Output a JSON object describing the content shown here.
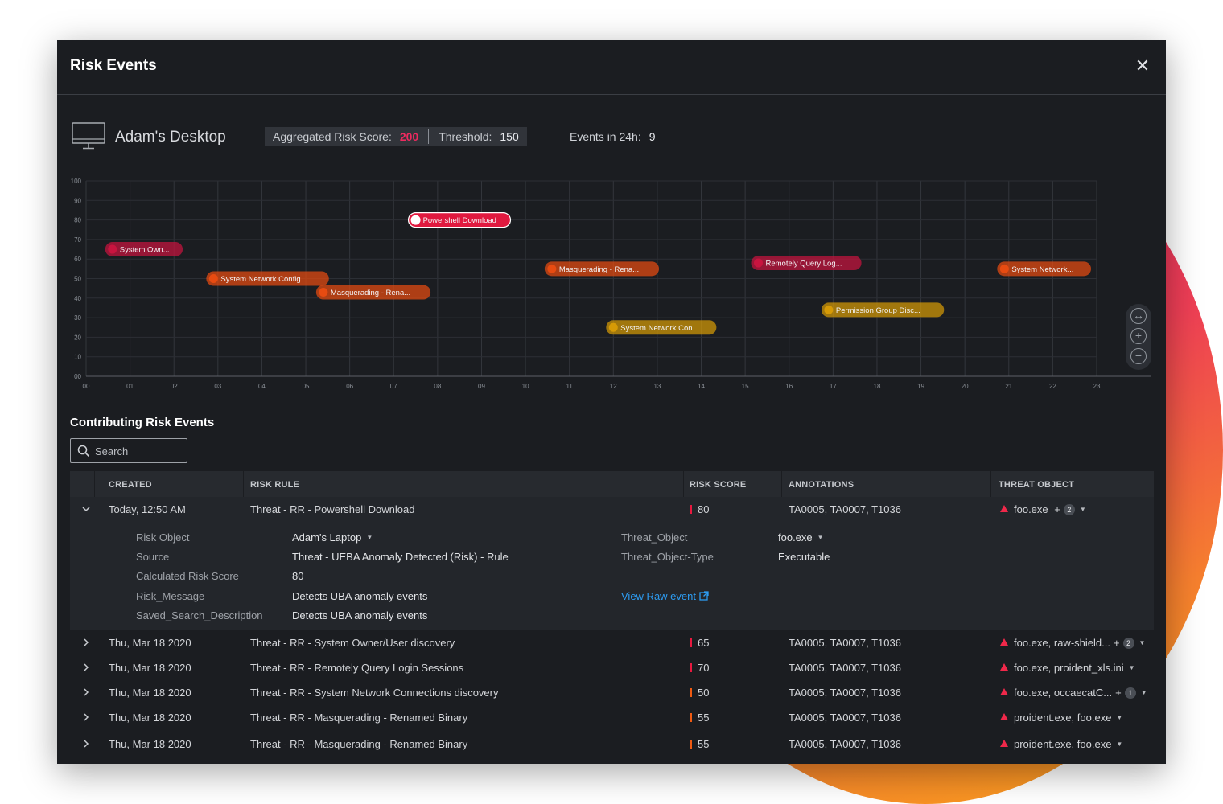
{
  "modal": {
    "title": "Risk Events",
    "close_label": "✕"
  },
  "summary": {
    "device_name": "Adam's Desktop",
    "agg_label": "Aggregated Risk Score:",
    "agg_value": "200",
    "threshold_label": "Threshold:",
    "threshold_value": "150",
    "events_label": "Events in 24h:",
    "events_value": "9"
  },
  "chart_data": {
    "type": "scatter",
    "title": "",
    "xlabel": "",
    "ylabel": "",
    "x_ticks": [
      "00",
      "01",
      "02",
      "03",
      "04",
      "05",
      "06",
      "07",
      "08",
      "09",
      "10",
      "11",
      "12",
      "13",
      "14",
      "15",
      "16",
      "17",
      "18",
      "19",
      "20",
      "21",
      "22",
      "23"
    ],
    "y_ticks": [
      "00",
      "10",
      "20",
      "30",
      "40",
      "50",
      "60",
      "70",
      "80",
      "90",
      "100"
    ],
    "ylim": [
      0,
      100
    ],
    "xlim": [
      0,
      23
    ],
    "points": [
      {
        "x": 0.6,
        "y": 65,
        "label": "System Own...",
        "color": "#c8143f"
      },
      {
        "x": 2.9,
        "y": 50,
        "label": "System Network Config...",
        "color": "#e74b11"
      },
      {
        "x": 5.4,
        "y": 43,
        "label": "Masquerading - Rena...",
        "color": "#e74b11"
      },
      {
        "x": 7.5,
        "y": 80,
        "label": "Powershell Download",
        "color": "#e0193f",
        "selected": true
      },
      {
        "x": 10.6,
        "y": 55,
        "label": "Masquerading - Rena...",
        "color": "#e74b11"
      },
      {
        "x": 12.0,
        "y": 25,
        "label": "System Network Con...",
        "color": "#d69a06"
      },
      {
        "x": 15.3,
        "y": 58,
        "label": "Remotely Query Log...",
        "color": "#c8143f"
      },
      {
        "x": 16.9,
        "y": 34,
        "label": "Permission Group Disc...",
        "color": "#d69a06"
      },
      {
        "x": 20.9,
        "y": 55,
        "label": "System Network...",
        "color": "#e74b11"
      }
    ]
  },
  "zoom": {
    "pan_icon": "↔",
    "zoom_in": "+",
    "zoom_out": "−"
  },
  "contrib": {
    "title": "Contributing Risk Events",
    "search_placeholder": "Search"
  },
  "table": {
    "headers": {
      "created": "CREATED",
      "risk_rule": "RISK RULE",
      "risk_score": "RISK SCORE",
      "annotations": "ANNOTATIONS",
      "threat_object": "THREAT OBJECT"
    },
    "expanded_row": {
      "created": "Today, 12:50 AM",
      "rule": "Threat - RR - Powershell Download",
      "score": "80",
      "score_color": "#e8193f",
      "annotations": "TA0005, TA0007, T1036",
      "threat": "foo.exe",
      "threat_plus": "+",
      "threat_badge": "2",
      "details": {
        "risk_object_label": "Risk Object",
        "risk_object": "Adam's Laptop",
        "source_label": "Source",
        "source": "Threat - UEBA Anomaly Detected (Risk) - Rule",
        "calc_label": "Calculated Risk Score",
        "calc": "80",
        "msg_label": "Risk_Message",
        "msg": "Detects UBA anomaly events",
        "saved_label": "Saved_Search_Description",
        "saved": "Detects UBA anomaly events",
        "threat_object_label": "Threat_Object",
        "threat_object": "foo.exe",
        "threat_type_label": "Threat_Object-Type",
        "threat_type": "Executable",
        "raw_link": "View Raw event"
      }
    },
    "rows": [
      {
        "created": "Thu, Mar 18 2020",
        "rule": "Threat - RR - System Owner/User discovery",
        "score": "65",
        "score_color": "#e8193f",
        "annotations": "TA0005, TA0007, T1036",
        "threat": "foo.exe, raw-shield...",
        "plus": "+",
        "badge": "2"
      },
      {
        "created": "Thu, Mar 18 2020",
        "rule": "Threat - RR - Remotely Query Login Sessions",
        "score": "70",
        "score_color": "#e8193f",
        "annotations": "TA0005, TA0007, T1036",
        "threat": "foo.exe, proident_xls.ini",
        "plus": "",
        "badge": ""
      },
      {
        "created": "Thu, Mar 18 2020",
        "rule": "Threat - RR - System Network Connections discovery",
        "score": "50",
        "score_color": "#ef5a12",
        "annotations": "TA0005, TA0007, T1036",
        "threat": "foo.exe, occaecatC...",
        "plus": "+",
        "badge": "1"
      },
      {
        "created": "Thu, Mar 18 2020",
        "rule": "Threat - RR - Masquerading - Renamed Binary",
        "score": "55",
        "score_color": "#ef5a12",
        "annotations": "TA0005, TA0007, T1036",
        "threat": "proident.exe, foo.exe",
        "plus": "",
        "badge": ""
      },
      {
        "created": "Thu, Mar 18 2020",
        "rule": "Threat - RR - Masquerading - Renamed Binary",
        "score": "55",
        "score_color": "#ef5a12",
        "annotations": "TA0005, TA0007, T1036",
        "threat": "proident.exe, foo.exe",
        "plus": "",
        "badge": ""
      }
    ]
  }
}
